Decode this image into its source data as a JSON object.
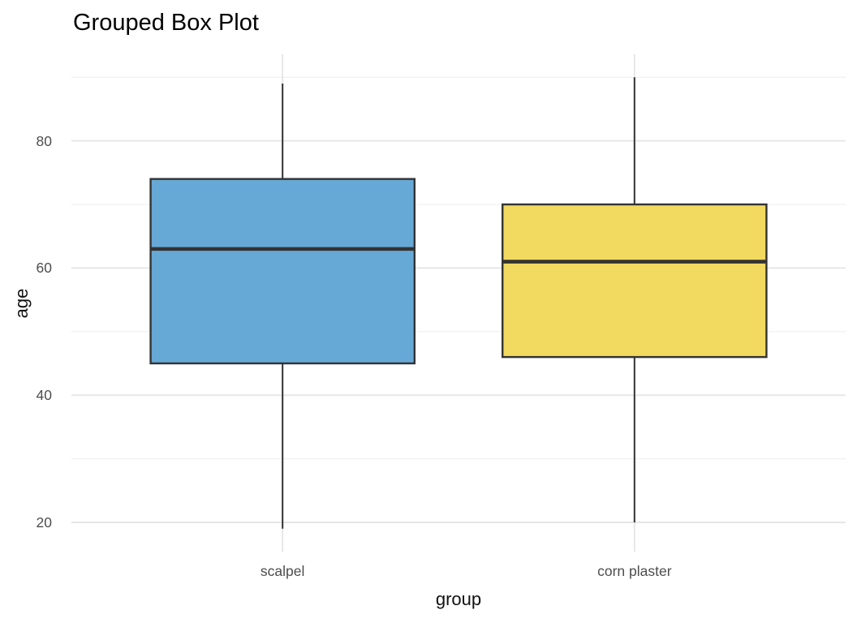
{
  "title": "Grouped Box Plot",
  "chart_data": {
    "type": "boxplot",
    "title": "Grouped Box Plot",
    "xlabel": "group",
    "ylabel": "age",
    "categories": [
      "scalpel",
      "corn plaster"
    ],
    "series": [
      {
        "name": "scalpel",
        "whisker_low": 19,
        "q1": 45,
        "median": 63,
        "q3": 74,
        "whisker_high": 89,
        "fill": "#67A9D6"
      },
      {
        "name": "corn plaster",
        "whisker_low": 20,
        "q1": 46,
        "median": 61,
        "q3": 70,
        "whisker_high": 90,
        "fill": "#F2D95F"
      }
    ],
    "y_axis": {
      "ticks": [
        20,
        40,
        60,
        80
      ],
      "minor_ticks": [
        30,
        50,
        70,
        90
      ],
      "range": [
        15.4,
        93.6
      ]
    },
    "x_axis": {
      "tick_labels": [
        "scalpel",
        "corn plaster"
      ]
    },
    "layout": {
      "grid": "major+minor horizontal, major vertical at categories",
      "legend": "none",
      "background": "white"
    },
    "colors": {
      "box_border": "#333333",
      "whisker": "#333333",
      "median": "#333333",
      "grid_major": "#E5E5E5",
      "grid_minor": "#F0F0F0",
      "tick_label": "#4D4D4D",
      "axis_title": "#111111",
      "title": "#000000",
      "background": "#FFFFFF"
    }
  }
}
